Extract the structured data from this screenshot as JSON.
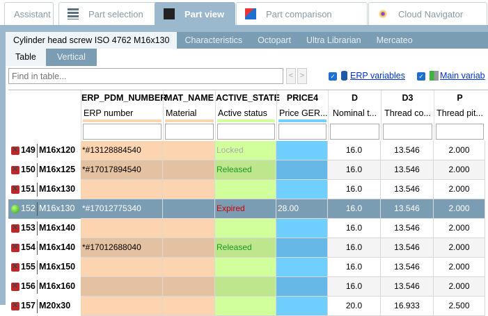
{
  "top_tabs": [
    {
      "label": "Assistant",
      "icon": "none",
      "active": false
    },
    {
      "label": "Part selection",
      "icon": "stack-icon",
      "active": false
    },
    {
      "label": "Part view",
      "icon": "cubes-icon",
      "active": true
    },
    {
      "label": "Part comparison",
      "icon": "compare-icon",
      "active": false
    },
    {
      "label": "Cloud Navigator",
      "icon": "network-icon",
      "active": false
    }
  ],
  "sub_tabs": [
    "Cylinder head screw ISO 4762 M16x130",
    "Characteristics",
    "Octopart",
    "Ultra Librarian",
    "Mercateo"
  ],
  "view_tabs": [
    "Table",
    "Vertical"
  ],
  "search": {
    "placeholder": "Find in table...",
    "prev": "<",
    "next": ">"
  },
  "options": {
    "erp_label": "ERP variables",
    "main_label": "Main variab",
    "erp_checked": true,
    "main_checked": true
  },
  "columns": [
    {
      "name": "ERP_PDM_NUMBER",
      "desc": "ERP number",
      "color": "#fcd5b0",
      "alt": "#e4c1a0",
      "align": "left"
    },
    {
      "name": "MAT_NAME",
      "desc": "Material",
      "color": "#fcd5b0",
      "alt": "#e4c1a0",
      "align": "left"
    },
    {
      "name": "ACTIVE_STATE",
      "desc": "Active status",
      "color": "#d0ff9c",
      "alt": "#bee68c",
      "align": "left"
    },
    {
      "name": "PRICE4",
      "desc": "Price GER...",
      "color": "#70cfff",
      "alt": "#66b8e6",
      "align": "left"
    },
    {
      "name": "D",
      "desc": "Nominal t...",
      "color": "#ffffff",
      "alt": "#f4f4f4",
      "align": "center"
    },
    {
      "name": "D3",
      "desc": "Thread co...",
      "color": "#ffffff",
      "alt": "#f4f4f4",
      "align": "center"
    },
    {
      "name": "P",
      "desc": "Thread pit...",
      "color": "#ffffff",
      "alt": "#f4f4f4",
      "align": "center"
    }
  ],
  "rows": [
    {
      "no": "149",
      "name": "M16x120",
      "status": "red",
      "cells": [
        "*#13128884540",
        "",
        "Locked",
        "",
        "16.0",
        "13.546",
        "2.000"
      ]
    },
    {
      "no": "150",
      "name": "M16x125",
      "status": "red",
      "cells": [
        "*#17017894540",
        "",
        "Released",
        "",
        "16.0",
        "13.546",
        "2.000"
      ]
    },
    {
      "no": "151",
      "name": "M16x130",
      "status": "red",
      "cells": [
        "",
        "",
        "",
        "",
        "16.0",
        "13.546",
        "2.000"
      ]
    },
    {
      "no": "152",
      "name": "M16x130",
      "status": "green",
      "selected": true,
      "cells": [
        "*#17012775340",
        "",
        "Expired",
        "28.00",
        "16.0",
        "13.546",
        "2.000"
      ]
    },
    {
      "no": "153",
      "name": "M16x140",
      "status": "red",
      "cells": [
        "",
        "",
        "",
        "",
        "16.0",
        "13.546",
        "2.000"
      ]
    },
    {
      "no": "154",
      "name": "M16x140",
      "status": "red",
      "cells": [
        "*#17012688040",
        "",
        "Released",
        "",
        "16.0",
        "13.546",
        "2.000"
      ]
    },
    {
      "no": "155",
      "name": "M16x150",
      "status": "red",
      "cells": [
        "",
        "",
        "",
        "",
        "16.0",
        "13.546",
        "2.000"
      ]
    },
    {
      "no": "156",
      "name": "M16x160",
      "status": "red",
      "cells": [
        "",
        "",
        "",
        "",
        "16.0",
        "13.546",
        "2.000"
      ]
    },
    {
      "no": "157",
      "name": "M20x30",
      "status": "red",
      "cells": [
        "",
        "",
        "",
        "",
        "20.0",
        "16.933",
        "2.500"
      ]
    }
  ],
  "state_colors": {
    "Locked": "#aaaaaa",
    "Released": "#1a9a1a",
    "Expired": "#cc0000"
  }
}
